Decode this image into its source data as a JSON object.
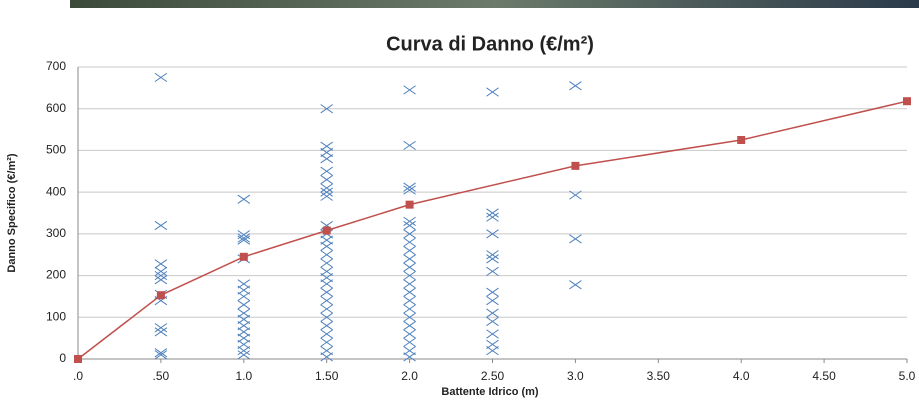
{
  "chart_data": {
    "type": "combo",
    "title": "Curva di Danno (€/m²)",
    "x_label": "Battente Idrico (m)",
    "y_label": "Danno Specifico (€/m²)",
    "xlim": [
      0,
      5
    ],
    "ylim": [
      0,
      700
    ],
    "xticks": [
      {
        "value": 0,
        "label": ".0"
      },
      {
        "value": 0.5,
        "label": ".50"
      },
      {
        "value": 1,
        "label": "1.0"
      },
      {
        "value": 1.5,
        "label": "1.50"
      },
      {
        "value": 2,
        "label": "2.0"
      },
      {
        "value": 2.5,
        "label": "2.50"
      },
      {
        "value": 3,
        "label": "3.0"
      },
      {
        "value": 3.5,
        "label": "3.50"
      },
      {
        "value": 4,
        "label": "4.0"
      },
      {
        "value": 4.5,
        "label": "4.50"
      },
      {
        "value": 5,
        "label": "5.0"
      }
    ],
    "yticks": [
      0,
      100,
      200,
      300,
      400,
      500,
      600,
      700
    ],
    "grid": true,
    "series": [
      {
        "marker": "x",
        "color": "#4f81bd",
        "x": [
          0.5,
          0.5,
          0.5,
          0.5,
          0.5,
          0.5,
          0.5,
          0.5,
          0.5,
          0.5,
          0.5,
          0.5,
          1,
          1,
          1,
          1,
          1,
          1,
          1,
          1,
          1,
          1,
          1,
          1,
          1,
          1,
          1,
          1,
          1,
          1.5,
          1.5,
          1.5,
          1.5,
          1.5,
          1.5,
          1.5,
          1.5,
          1.5,
          1.5,
          1.5,
          1.5,
          1.5,
          1.5,
          1.5,
          1.5,
          1.5,
          1.5,
          1.5,
          1.5,
          1.5,
          1.5,
          1.5,
          1.5,
          1.5,
          1.5,
          1.5,
          2,
          2,
          2,
          2,
          2,
          2,
          2,
          2,
          2,
          2,
          2,
          2,
          2,
          2,
          2,
          2,
          2,
          2,
          2,
          2,
          2,
          2,
          2.5,
          2.5,
          2.5,
          2.5,
          2.5,
          2.5,
          2.5,
          2.5,
          2.5,
          2.5,
          2.5,
          2.5,
          2.5,
          2.5,
          3,
          3,
          3,
          3
        ],
        "values": [
          675,
          320,
          228,
          210,
          200,
          190,
          155,
          140,
          75,
          65,
          15,
          10,
          383,
          298,
          290,
          285,
          240,
          180,
          165,
          150,
          130,
          110,
          95,
          80,
          65,
          50,
          35,
          20,
          10,
          600,
          510,
          495,
          480,
          450,
          430,
          410,
          400,
          390,
          320,
          300,
          285,
          270,
          250,
          230,
          210,
          195,
          180,
          160,
          140,
          120,
          100,
          80,
          60,
          40,
          20,
          5,
          645,
          512,
          412,
          405,
          330,
          320,
          300,
          280,
          260,
          240,
          220,
          200,
          180,
          160,
          140,
          120,
          100,
          80,
          60,
          40,
          20,
          5,
          640,
          350,
          340,
          300,
          250,
          240,
          210,
          160,
          140,
          110,
          90,
          60,
          35,
          20,
          655,
          393,
          288,
          178
        ]
      },
      {
        "marker": "square",
        "color": "#c0504d",
        "x": [
          0,
          0.5,
          1,
          1.5,
          2,
          3,
          4,
          5
        ],
        "values": [
          0,
          153,
          245,
          308,
          370,
          463,
          525,
          618
        ]
      }
    ]
  }
}
